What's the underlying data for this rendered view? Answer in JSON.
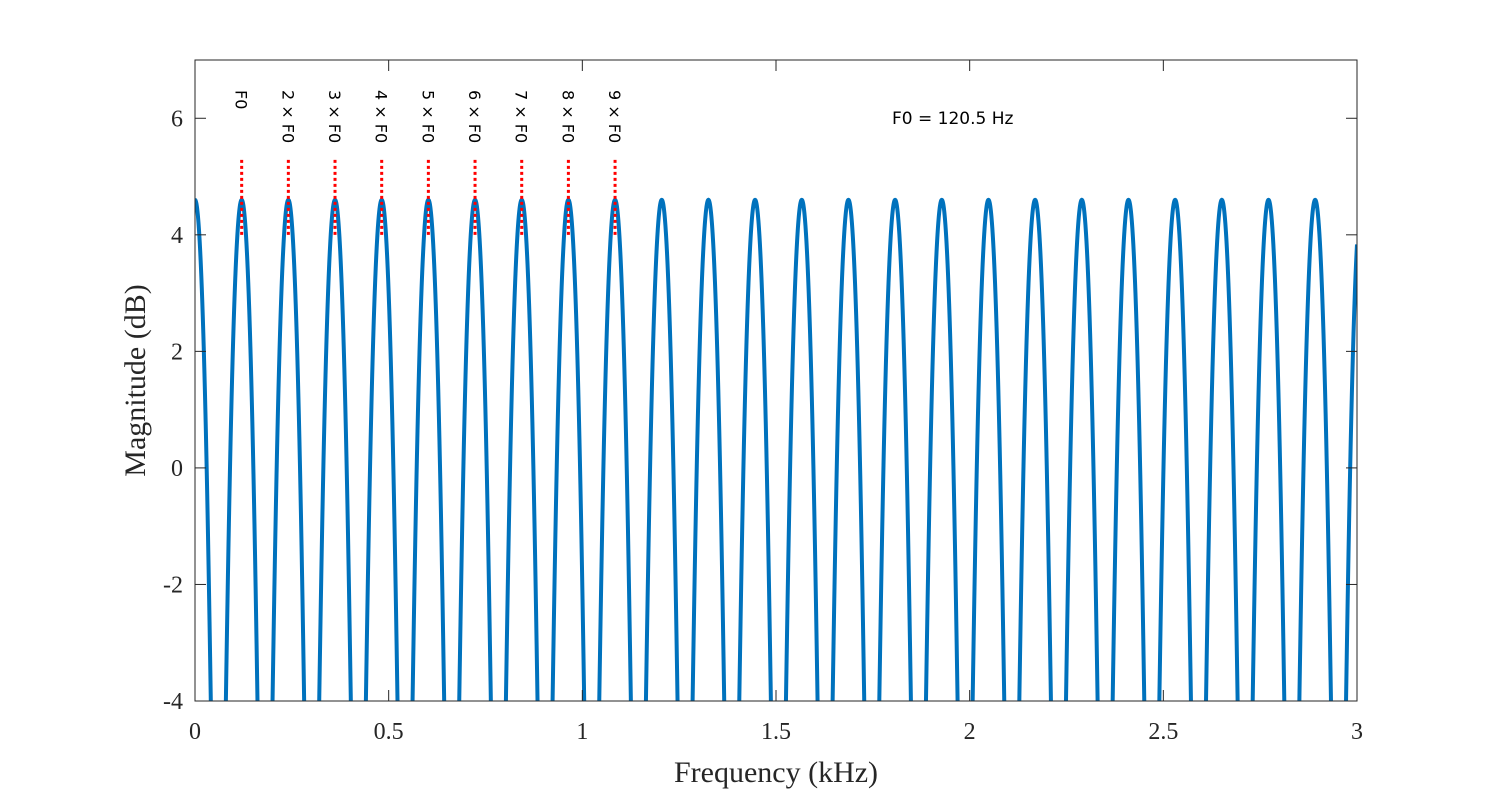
{
  "chart_data": {
    "type": "line",
    "xlabel": "Frequency (kHz)",
    "ylabel": "Magnitude (dB)",
    "xlim": [
      0,
      3
    ],
    "ylim": [
      -4,
      7
    ],
    "x_ticks": [
      0,
      0.5,
      1,
      1.5,
      2,
      2.5,
      3
    ],
    "x_tick_labels": [
      "0",
      "0.5",
      "1",
      "1.5",
      "2",
      "2.5",
      "3"
    ],
    "y_ticks": [
      -4,
      -2,
      0,
      2,
      4,
      6
    ],
    "y_tick_labels": [
      "-4",
      "-2",
      "0",
      "2",
      "4",
      "6"
    ],
    "grid": false,
    "annotation": "F0 = 120.5 Hz",
    "series": [
      {
        "color": "#0072BD",
        "description_of_shape": "comb-filter magnitude response: peaks of about 4.6 dB at every multiple of F0 (0.1205 kHz) including 0 kHz, deep notches between peaks falling below -4 dB",
        "f0_khz": 0.1205,
        "peak_db": 4.6
      }
    ],
    "harmonic_markers": {
      "color": "#FF0000",
      "style": "dotted",
      "x": [
        0.1205,
        0.241,
        0.3615,
        0.482,
        0.6025,
        0.723,
        0.8435,
        0.964,
        1.0845
      ],
      "y_range": [
        4.0,
        5.3
      ],
      "labels": [
        "F0",
        "2 × F0",
        "3 × F0",
        "4 × F0",
        "5 × F0",
        "6 × F0",
        "7 × F0",
        "8 × F0",
        "9 × F0"
      ]
    }
  }
}
